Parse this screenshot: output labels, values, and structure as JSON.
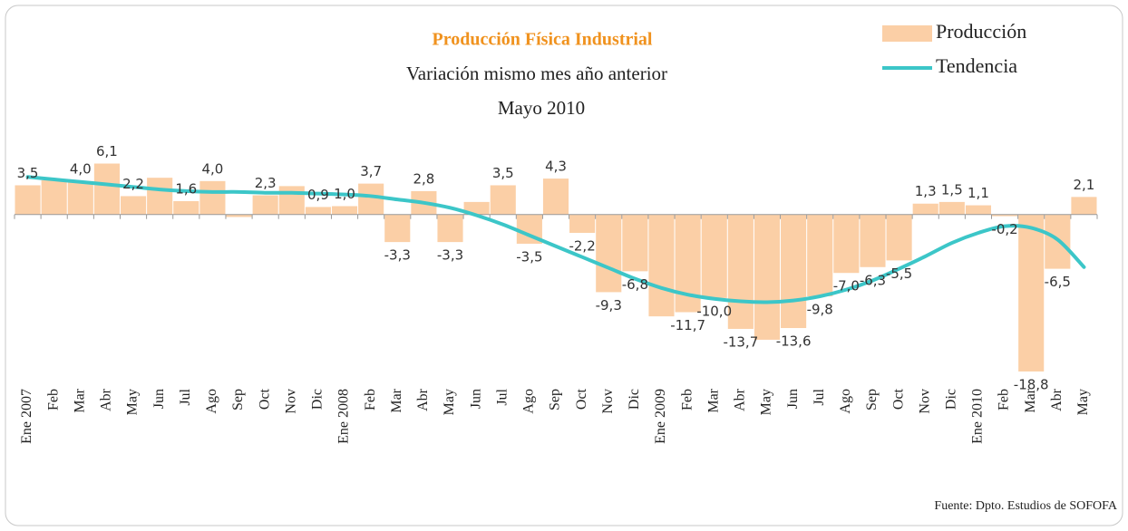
{
  "chart_data": {
    "type": "bar",
    "title": "Producción Física Industrial",
    "subtitle": "Variación mismo mes año anterior",
    "period": "Mayo 2010",
    "source": "Fuente: Dpto. Estudios  de SOFOFA",
    "categories": [
      "Ene 2007",
      "Feb",
      "Mar",
      "Abr",
      "May",
      "Jun",
      "Jul",
      "Ago",
      "Sep",
      "Oct",
      "Nov",
      "Dic",
      "Ene 2008",
      "Feb",
      "Mar",
      "Abr",
      "May",
      "Jun",
      "Jul",
      "Ago",
      "Sep",
      "Oct",
      "Nov",
      "Dic",
      "Ene 2009",
      "Feb",
      "Mar",
      "Abr",
      "May",
      "Jun",
      "Jul",
      "Ago",
      "Sep",
      "Oct",
      "Nov",
      "Dic",
      "Ene 2010",
      "Feb",
      "Mar",
      "Abr",
      "May"
    ],
    "series": [
      {
        "name": "Producción",
        "color": "#fbcfa6",
        "values": [
          3.5,
          4.1,
          4.0,
          6.1,
          2.2,
          4.4,
          1.6,
          4.0,
          -0.3,
          2.3,
          3.4,
          0.9,
          1.0,
          3.7,
          -3.3,
          2.8,
          -3.3,
          1.5,
          3.5,
          -3.5,
          4.3,
          -2.2,
          -9.3,
          -6.8,
          -12.2,
          -11.7,
          -10.0,
          -13.7,
          -15.0,
          -13.6,
          -9.8,
          -7.0,
          -6.3,
          -5.5,
          1.3,
          1.5,
          1.1,
          -0.2,
          -18.8,
          -6.5,
          2.1
        ],
        "value_labels": [
          "3,5",
          null,
          "4,0",
          "6,1",
          "2,2",
          null,
          "1,6",
          "4,0",
          null,
          "2,3",
          null,
          "0,9",
          "1,0",
          "3,7",
          "-3,3",
          "2,8",
          "-3,3",
          null,
          "3,5",
          "-3,5",
          "4,3",
          "-2,2",
          "-9,3",
          "-6,8",
          null,
          "-11,7",
          "-10,0",
          "-13,7",
          null,
          "-13,6",
          "-9,8",
          "-7,0",
          "-6,3",
          "-5,5",
          "1,3",
          "1,5",
          "1,1",
          "-0,2",
          "-18,8",
          "-6,5",
          "2,1"
        ]
      },
      {
        "name": "Tendencia",
        "color": "#3cc6c8",
        "type": "line",
        "values": [
          4.5,
          4.2,
          3.9,
          3.6,
          3.3,
          3.0,
          2.8,
          2.7,
          2.7,
          2.6,
          2.6,
          2.5,
          2.4,
          2.2,
          1.8,
          1.4,
          0.8,
          -0.1,
          -1.2,
          -2.5,
          -3.8,
          -5.1,
          -6.4,
          -7.7,
          -8.8,
          -9.6,
          -10.1,
          -10.4,
          -10.5,
          -10.3,
          -9.8,
          -9.0,
          -7.9,
          -6.5,
          -5.0,
          -3.4,
          -2.2,
          -1.4,
          -1.6,
          -3.0,
          -6.3
        ]
      }
    ],
    "ylim": [
      -20,
      8
    ],
    "legend": "top-right"
  }
}
